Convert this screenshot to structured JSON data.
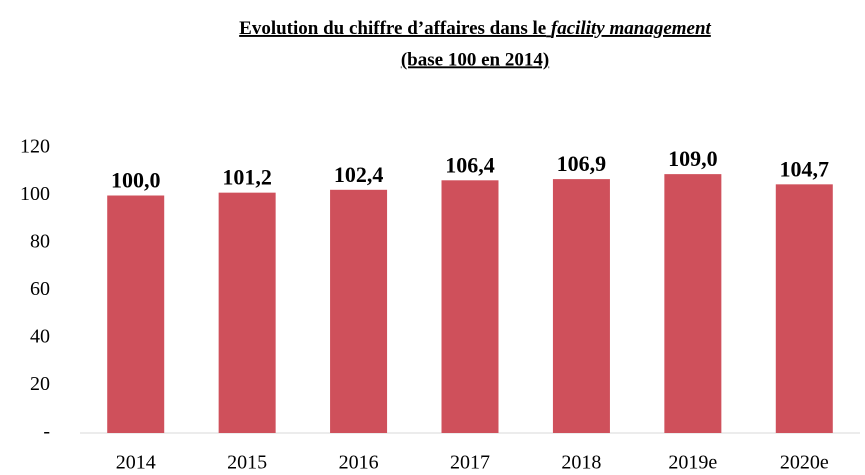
{
  "chart_data": {
    "type": "bar",
    "title": {
      "text": "Evolution du chiffre d’affaires dans le",
      "emphasis": "facility management"
    },
    "subtitle": "(base 100 en 2014)",
    "categories": [
      "2014",
      "2015",
      "2016",
      "2017",
      "2018",
      "2019e",
      "2020e"
    ],
    "values": [
      100.0,
      101.2,
      102.4,
      106.4,
      106.9,
      109.0,
      104.7
    ],
    "value_labels": [
      "100,0",
      "101,2",
      "102,4",
      "106,4",
      "106,9",
      "109,0",
      "104,7"
    ],
    "color": "#cf505b",
    "ylim": [
      0,
      120
    ],
    "yticks": [
      {
        "value": 0,
        "label": "-"
      },
      20,
      40,
      60,
      80,
      100,
      120
    ],
    "grid": false
  }
}
